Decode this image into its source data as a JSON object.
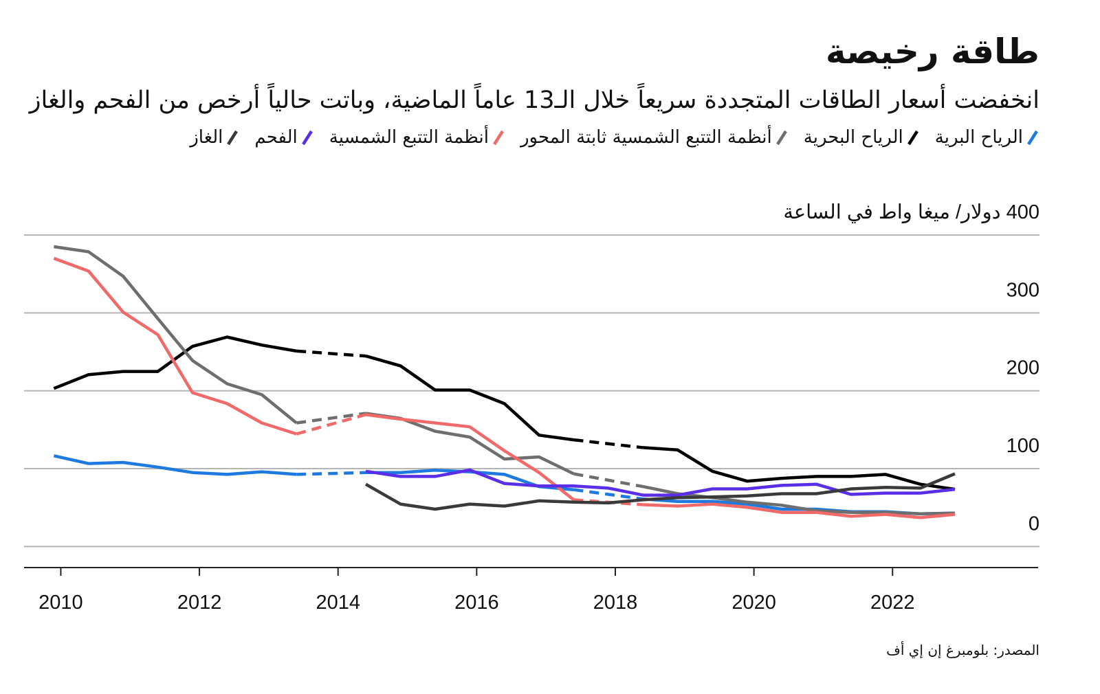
{
  "chart_data": {
    "type": "line",
    "title": "طاقة رخيصة",
    "subtitle": "انخفضت أسعار الطاقات المتجددة سريعاً خلال الـ13 عاماً الماضية، وباتت حالياً أرخص من الفحم والغاز",
    "source": "المصدر: بلومبرغ إن إي أف",
    "x": [
      2009.9,
      2010.4,
      2010.9,
      2011.4,
      2011.9,
      2012.4,
      2012.9,
      2013.4,
      2013.9,
      2014.4,
      2014.9,
      2015.4,
      2015.9,
      2016.4,
      2016.9,
      2017.4,
      2017.9,
      2018.4,
      2018.9,
      2019.4,
      2019.9,
      2020.4,
      2020.9,
      2021.4,
      2021.9,
      2022.4,
      2022.9
    ],
    "xlim": [
      2009.47,
      2024.1
    ],
    "xticks": [
      2010,
      2012,
      2014,
      2016,
      2018,
      2020,
      2022
    ],
    "ylim": [
      -27,
      400
    ],
    "yticks": [
      0,
      100,
      200,
      300,
      {
        "value": 400,
        "label": "400 دولار/ ميغا واط في الساعة"
      }
    ],
    "grid": true,
    "series": [
      {
        "name": "الرياح البرية",
        "color": "#1f7ae0",
        "values": [
          116.5,
          106.6,
          108,
          102,
          95,
          92.6,
          96,
          92.6,
          null,
          95,
          95,
          98,
          96,
          92.6,
          77,
          73,
          null,
          61,
          58,
          58,
          54.5,
          48,
          48,
          44.6,
          44.6,
          42,
          43
        ]
      },
      {
        "name": "الرياح البحرية",
        "color": "#000000",
        "values": [
          203,
          220.7,
          224.8,
          224.8,
          257,
          269,
          258.7,
          251,
          null,
          244.6,
          232,
          201,
          201,
          183.5,
          143,
          137,
          null,
          127,
          124,
          96.7,
          84,
          87.6,
          90,
          90,
          92.6,
          80,
          73.5
        ]
      },
      {
        "name": "أنظمة التتبع الشمسية ثابتة المحور",
        "color": "#6e6e6e",
        "values": [
          385,
          378.5,
          347,
          292.6,
          238.8,
          209,
          195,
          158.7,
          null,
          171,
          164.5,
          148,
          140.5,
          112.4,
          115,
          93.4,
          null,
          77,
          67.8,
          62.8,
          57,
          53,
          46,
          43.8,
          43.8,
          42,
          43
        ]
      },
      {
        "name": "أنظمة التتبع الشمسية",
        "color": "#f06a6a",
        "values": [
          370,
          353.7,
          300.8,
          272,
          197.5,
          183.5,
          158.7,
          144.6,
          null,
          169.4,
          163.6,
          158.7,
          153.7,
          123,
          95,
          60,
          null,
          53.7,
          52,
          54.5,
          50.4,
          43.8,
          43.8,
          38.8,
          41.3,
          37.2,
          41.3
        ]
      },
      {
        "name": "الفحم",
        "color": "#5a2ee6",
        "values": [
          null,
          null,
          null,
          null,
          null,
          null,
          null,
          null,
          null,
          96.7,
          90,
          90,
          98.3,
          81,
          77.7,
          77.7,
          75,
          66,
          66,
          74,
          74,
          78.5,
          80,
          67,
          68.6,
          68.6,
          73.5
        ]
      },
      {
        "name": "الغاز",
        "color": "#3a3a3a",
        "values": [
          null,
          null,
          null,
          null,
          null,
          null,
          null,
          null,
          null,
          80,
          54.5,
          48,
          54.5,
          52,
          58.7,
          57,
          56,
          60,
          62.8,
          63.6,
          65,
          67.8,
          67.8,
          74,
          76,
          75,
          93.4
        ]
      }
    ]
  }
}
